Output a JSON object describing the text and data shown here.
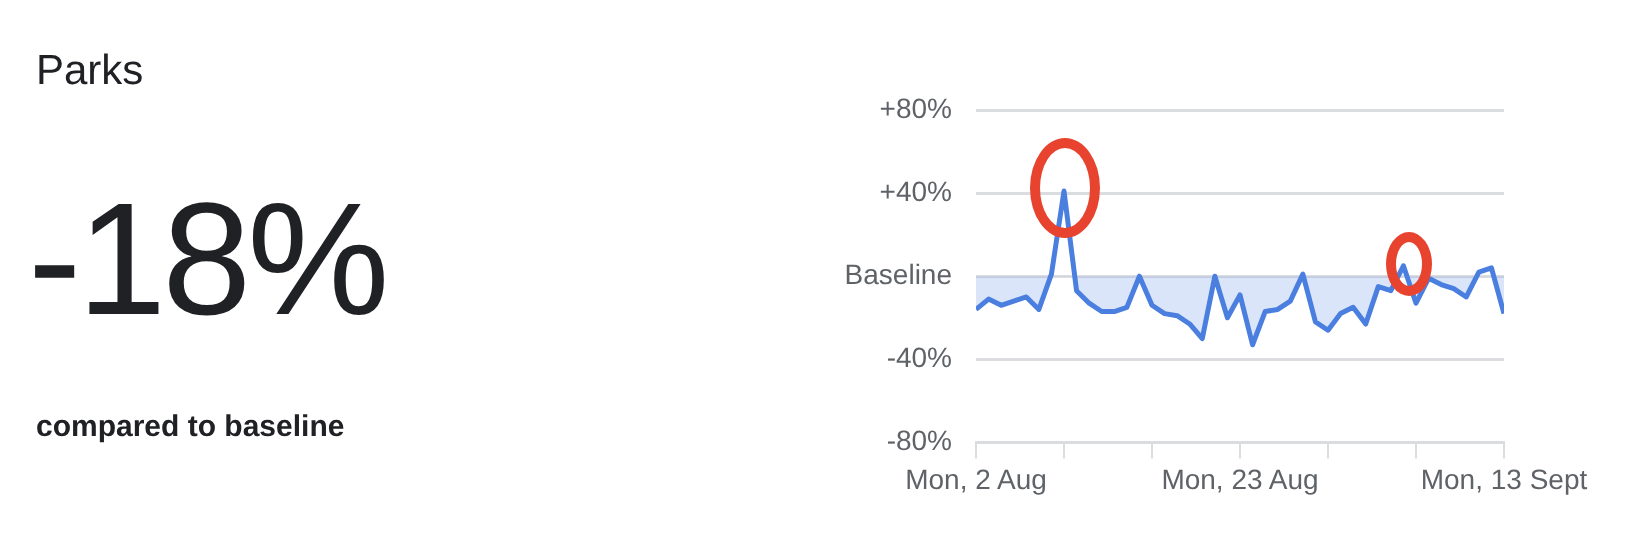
{
  "chart_data": {
    "type": "area",
    "title": "Parks",
    "annotations": [
      "-18%",
      "compared to baseline"
    ],
    "x": [
      "--08-02",
      "--08-03",
      "--08-04",
      "--08-05",
      "--08-06",
      "--08-07",
      "--08-08",
      "--08-09",
      "--08-10",
      "--08-11",
      "--08-12",
      "--08-13",
      "--08-14",
      "--08-15",
      "--08-16",
      "--08-17",
      "--08-18",
      "--08-19",
      "--08-20",
      "--08-21",
      "--08-22",
      "--08-23",
      "--08-24",
      "--08-25",
      "--08-26",
      "--08-27",
      "--08-28",
      "--08-29",
      "--08-30",
      "--08-31",
      "--09-01",
      "--09-02",
      "--09-03",
      "--09-04",
      "--09-05",
      "--09-06",
      "--09-07",
      "--09-08",
      "--09-09",
      "--09-10",
      "--09-11",
      "--09-12",
      "--09-13"
    ],
    "series": [
      {
        "color": "#4a7fe0",
        "values": [
          -16,
          -11,
          -14,
          -12,
          -10,
          -16,
          1,
          41,
          -7,
          -13,
          -17,
          -17,
          -15,
          0,
          -14,
          -18,
          -19,
          -23,
          -30,
          0,
          -20,
          -9,
          -33,
          -17,
          -16,
          -12,
          1,
          -22,
          -26,
          -18,
          -15,
          -23,
          -5,
          -7,
          5,
          -13,
          -1,
          -4,
          -6,
          -10,
          2,
          4,
          -18
        ]
      }
    ],
    "xlim": [
      "--08-02",
      "--09-13"
    ],
    "xticks": [
      {
        "value": "--08-02",
        "label": "Mon, 2 Aug"
      },
      {
        "value": "--08-09",
        "label": null
      },
      {
        "value": "--08-16",
        "label": null
      },
      {
        "value": "--08-23",
        "label": "Mon, 23 Aug"
      },
      {
        "value": "--08-30",
        "label": null
      },
      {
        "value": "--09-06",
        "label": null
      },
      {
        "value": "--09-13",
        "label": "Mon, 13 Sept"
      }
    ],
    "ylim": [
      -80,
      80
    ],
    "yticks": [
      {
        "value": 80,
        "label": "+80%"
      },
      {
        "value": 40,
        "label": "+40%"
      },
      {
        "value": 0,
        "label": "Baseline"
      },
      {
        "value": -40,
        "label": "-40%"
      },
      {
        "value": -80,
        "label": "-80%"
      }
    ],
    "grid": "y",
    "legend": false,
    "marker": "none",
    "line_style": "solid"
  }
}
